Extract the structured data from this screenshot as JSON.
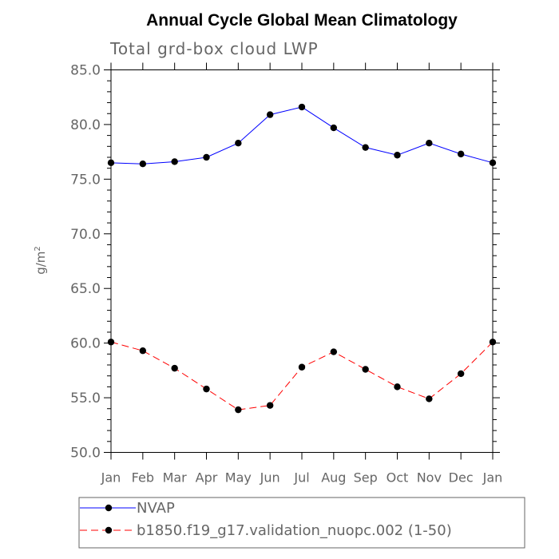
{
  "chart_data": {
    "type": "line",
    "title": "Annual Cycle Global Mean Climatology",
    "subtitle": "Total grd-box cloud LWP",
    "ylabel": "g/m",
    "ylabel_superscript": "2",
    "xlabel": "",
    "categories": [
      "Jan",
      "Feb",
      "Mar",
      "Apr",
      "May",
      "Jun",
      "Jul",
      "Aug",
      "Sep",
      "Oct",
      "Nov",
      "Dec",
      "Jan"
    ],
    "ylim": [
      50.0,
      85.0
    ],
    "yticks": [
      "50.0",
      "55.0",
      "60.0",
      "65.0",
      "70.0",
      "75.0",
      "80.0",
      "85.0"
    ],
    "ytick_values": [
      50,
      55,
      60,
      65,
      70,
      75,
      80,
      85
    ],
    "grid": false,
    "legend_position": "bottom",
    "series": [
      {
        "name": "NVAP",
        "color": "#0000ff",
        "style": "solid",
        "values": [
          76.5,
          76.4,
          76.6,
          77.0,
          78.3,
          80.9,
          81.6,
          79.7,
          77.9,
          77.2,
          78.3,
          77.3,
          76.5
        ]
      },
      {
        "name": "b1850.f19_g17.validation_nuopc.002 (1-50)",
        "color": "#ff0000",
        "style": "dashed",
        "values": [
          60.1,
          59.3,
          57.7,
          55.8,
          53.9,
          54.3,
          57.8,
          59.2,
          57.6,
          56.0,
          54.9,
          57.2,
          60.1
        ]
      }
    ]
  }
}
